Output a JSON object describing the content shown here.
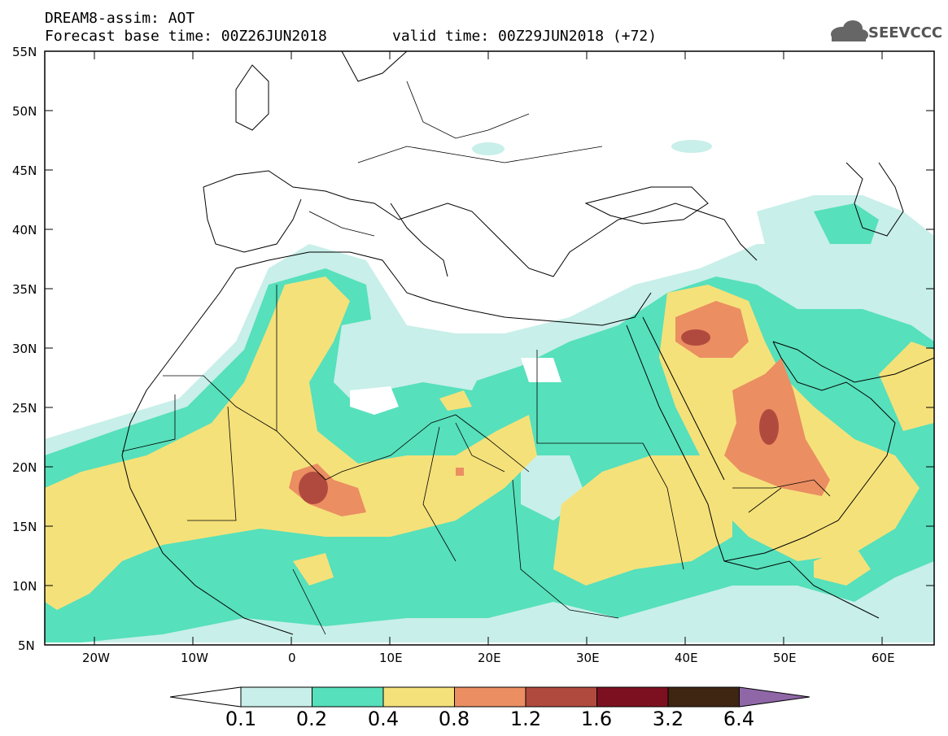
{
  "header": {
    "title": "DREAM8-assim: AOT",
    "base_time": "Forecast base time: 00Z26JUN2018",
    "valid_time": "valid time: 00Z29JUN2018 (+72)"
  },
  "logo": {
    "text": "SEEVCCC",
    "icon": "cloud-icon"
  },
  "axes": {
    "lat_labels": [
      "55N",
      "50N",
      "45N",
      "40N",
      "35N",
      "30N",
      "25N",
      "20N",
      "15N",
      "10N",
      "5N"
    ],
    "lon_labels": [
      "20W",
      "10W",
      "0",
      "10E",
      "20E",
      "30E",
      "40E",
      "50E",
      "60E"
    ]
  },
  "colorbar": {
    "labels": [
      "0.1",
      "0.2",
      "0.4",
      "0.8",
      "1.2",
      "1.6",
      "3.2",
      "6.4"
    ],
    "colors": [
      "#ffffff",
      "#c8efe9",
      "#56e0bb",
      "#f5e17a",
      "#eb8e62",
      "#b14a3e",
      "#7d1020",
      "#3f2613",
      "#8f67a7"
    ]
  },
  "map": {
    "projection": "lat-lon",
    "lat_range": [
      5,
      55
    ],
    "lon_range": [
      -25,
      65
    ],
    "region": "North Africa, Mediterranean and Middle East"
  }
}
